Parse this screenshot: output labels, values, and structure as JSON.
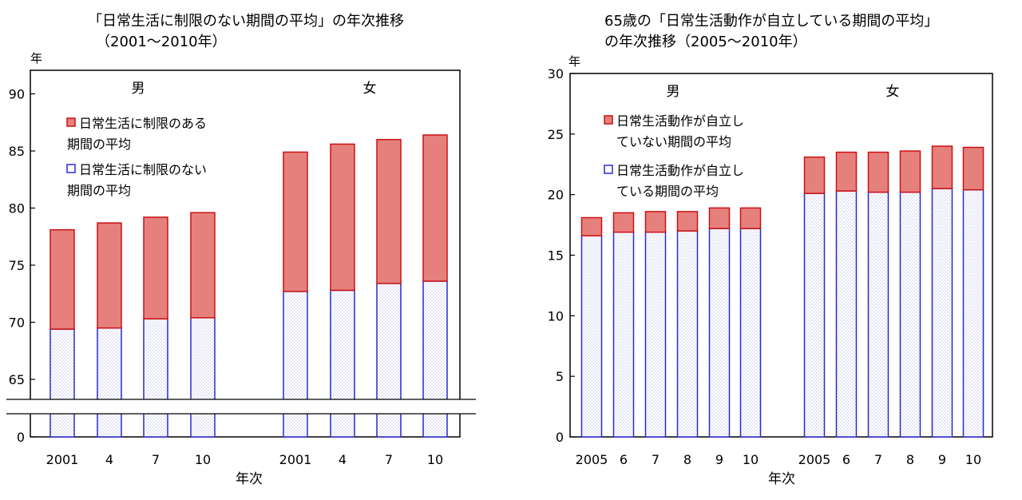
{
  "chart_data": [
    {
      "type": "bar",
      "stacked": true,
      "title_lines": [
        "「日常生活に制限のない期間の平均」の年次推移",
        "（2001～2010年）"
      ],
      "ylabel": "年",
      "xlabel": "年次",
      "ylim": [
        0,
        92
      ],
      "axis_break": true,
      "yticks": [
        0,
        65,
        70,
        75,
        80,
        85,
        90
      ],
      "groups": [
        "男",
        "女"
      ],
      "categories": [
        "2001",
        "4",
        "7",
        "10",
        "2001",
        "4",
        "7",
        "10"
      ],
      "legend": [
        "日常生活に制限のある期間の平均",
        "日常生活に制限のない期間の平均"
      ],
      "legend_lines": [
        [
          "日常生活に制限のある",
          "期間の平均"
        ],
        [
          "日常生活に制限のない",
          "期間の平均"
        ]
      ],
      "series": [
        {
          "name": "日常生活に制限のない期間の平均",
          "color": "#ffffff",
          "edge": "#2a2ad0",
          "values": [
            69.4,
            69.5,
            70.3,
            70.4,
            72.7,
            72.8,
            73.4,
            73.6
          ]
        },
        {
          "name": "日常生活に制限のある期間の平均",
          "color": "#e6807d",
          "edge": "#cc1111",
          "values": [
            8.7,
            9.2,
            8.9,
            9.2,
            12.2,
            12.8,
            12.6,
            12.8
          ]
        }
      ],
      "totals": [
        78.1,
        78.7,
        79.2,
        79.6,
        84.9,
        85.6,
        86.0,
        86.4
      ]
    },
    {
      "type": "bar",
      "stacked": true,
      "title_lines": [
        "65歳の「日常生活動作が自立している期間の平均」",
        "の年次推移（2005～2010年）"
      ],
      "ylabel": "年",
      "xlabel": "年次",
      "ylim": [
        0,
        30
      ],
      "yticks": [
        0,
        5,
        10,
        15,
        20,
        25,
        30
      ],
      "groups": [
        "男",
        "女"
      ],
      "categories": [
        "2005",
        "6",
        "7",
        "8",
        "9",
        "10",
        "2005",
        "6",
        "7",
        "8",
        "9",
        "10"
      ],
      "legend": [
        "日常生活動作が自立していない期間の平均",
        "日常生活動作が自立している期間の平均"
      ],
      "legend_lines": [
        [
          "日常生活動作が自立し",
          "ていない期間の平均"
        ],
        [
          "日常生活動作が自立し",
          "ている期間の平均"
        ]
      ],
      "series": [
        {
          "name": "日常生活動作が自立している期間の平均",
          "color": "#ffffff",
          "edge": "#2a2ad0",
          "values": [
            16.6,
            16.9,
            16.9,
            17.0,
            17.2,
            17.2,
            20.1,
            20.3,
            20.2,
            20.2,
            20.5,
            20.4
          ]
        },
        {
          "name": "日常生活動作が自立していない期間の平均",
          "color": "#e6807d",
          "edge": "#cc1111",
          "values": [
            1.5,
            1.6,
            1.7,
            1.6,
            1.7,
            1.7,
            3.0,
            3.2,
            3.3,
            3.4,
            3.5,
            3.5
          ]
        }
      ]
    }
  ]
}
